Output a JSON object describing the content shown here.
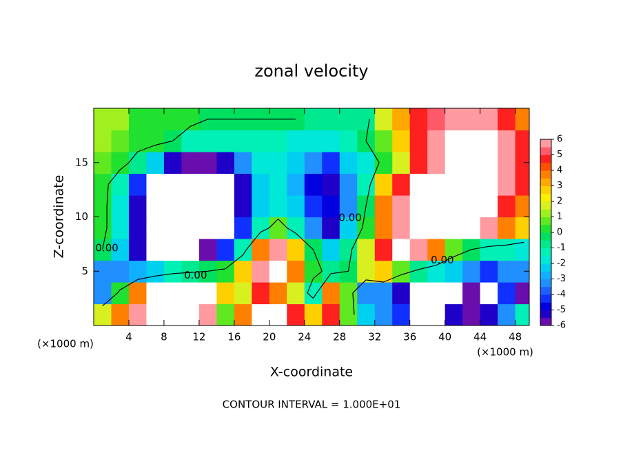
{
  "chart_data": {
    "type": "contour",
    "title": "zonal velocity",
    "x_label": "X-coordinate",
    "y_label": "Z-coordinate",
    "x_unit_label": "(×1000 m)",
    "x_unit_label_right": "(×1000 m)",
    "footer": "CONTOUR INTERVAL = 1.000E+01",
    "xlim": [
      0,
      49.6
    ],
    "ylim": [
      0,
      20
    ],
    "xticks": [
      4,
      8,
      12,
      16,
      20,
      24,
      28,
      32,
      36,
      40,
      44,
      48
    ],
    "yticks": [
      5,
      10,
      15
    ],
    "x": [
      1,
      3,
      5,
      7,
      9,
      11,
      13,
      15,
      17,
      19,
      21,
      23,
      25,
      27,
      29,
      31,
      33,
      35,
      37,
      39,
      41,
      43,
      45,
      47,
      49
    ],
    "y": [
      1,
      3,
      5,
      7,
      9,
      11,
      13,
      15,
      17,
      19
    ],
    "z": [
      [
        2,
        4,
        6,
        7,
        8,
        8,
        6,
        1,
        4,
        7,
        7,
        5,
        3,
        5,
        1,
        -2,
        -3,
        -4,
        -7,
        -7,
        -5,
        -6,
        -5,
        -3,
        -1
      ],
      [
        -3,
        0.5,
        4,
        7,
        8,
        8,
        7,
        3,
        2,
        5,
        4,
        2,
        -1,
        4,
        1,
        -3,
        -3,
        -5,
        -7,
        -7,
        -8,
        -6,
        -7,
        -4,
        -6
      ],
      [
        -3,
        -3,
        -2.5,
        -2,
        -1,
        -0.5,
        0,
        0.5,
        3,
        6,
        7,
        4,
        0.5,
        -0.5,
        0,
        2,
        3,
        1,
        -0.5,
        -1.5,
        -2,
        -3,
        -4,
        -3,
        -3
      ],
      [
        0,
        -2,
        -5,
        -7,
        -7,
        -7,
        -6,
        -4,
        -1,
        4,
        6,
        3,
        0,
        -2,
        -0.5,
        2,
        5,
        7,
        6,
        4,
        1,
        0,
        -1,
        -1,
        -1.5
      ],
      [
        0.5,
        -1.5,
        -5,
        -8,
        -9,
        -8,
        -7,
        -6.5,
        -4,
        -1,
        1,
        -1,
        -3,
        -5,
        -2,
        0.5,
        4,
        6,
        7,
        7,
        7,
        7,
        6,
        4,
        3
      ],
      [
        0.5,
        -1.5,
        -5,
        -8,
        -9,
        -9,
        -8,
        -7,
        -5,
        -2,
        -1.5,
        -2,
        -4,
        -4.5,
        -3,
        0,
        4,
        6,
        7,
        8,
        9,
        8,
        7,
        5,
        4
      ],
      [
        0.5,
        -1,
        -4,
        -7,
        -8,
        -8,
        -8,
        -7,
        -5,
        -2,
        -1.5,
        -2.5,
        -4.5,
        -5,
        -3,
        -1,
        3,
        5,
        7,
        8,
        8,
        8,
        7,
        6,
        5
      ],
      [
        1,
        0.5,
        -0.5,
        -2,
        -5,
        -6,
        -6,
        -5,
        -3,
        -1.5,
        -1.5,
        -2,
        -3,
        -4,
        -2,
        -1.5,
        0.5,
        2,
        5,
        6,
        7,
        7,
        7,
        6,
        5
      ],
      [
        1.5,
        1,
        0.5,
        0.5,
        0,
        -1,
        -1,
        -1,
        -1,
        -1,
        -1,
        -1.5,
        -1.5,
        -1.5,
        -1,
        0,
        1,
        3,
        5,
        6,
        7,
        7,
        7,
        6,
        5
      ],
      [
        1.5,
        1.5,
        0.5,
        0.5,
        0.5,
        0.5,
        0,
        0,
        0,
        0,
        0,
        0,
        -0.5,
        -0.5,
        -0.5,
        -0.5,
        2,
        3.5,
        5,
        5.5,
        6,
        6,
        6,
        5,
        4
      ]
    ],
    "color_levels": [
      -6,
      -5.5,
      -5,
      -4.5,
      -4,
      -3.5,
      -3,
      -2.5,
      -2,
      -1.5,
      -1,
      -0.5,
      0,
      0.5,
      1,
      1.5,
      2,
      2.5,
      3,
      3.5,
      4,
      4.5,
      5,
      5.5,
      6
    ],
    "colors": [
      "#6a0dad",
      "#1e00c8",
      "#0000e0",
      "#1030ff",
      "#1e60ff",
      "#2090ff",
      "#10b0ff",
      "#00d0f0",
      "#00e8d8",
      "#00f0b8",
      "#00e890",
      "#00e060",
      "#20e030",
      "#60e820",
      "#a0f020",
      "#d8f020",
      "#f8f000",
      "#ffd000",
      "#ffa800",
      "#ff8000",
      "#ff5000",
      "#ff2020",
      "#ff5a6a",
      "#ff9aa0"
    ],
    "colorbar_ticks": [
      6,
      5,
      4,
      3,
      2,
      1,
      0,
      -1,
      -2,
      -3,
      -4,
      -5,
      -6
    ],
    "contour_levels": [
      0
    ],
    "contour_labels": [
      {
        "text": "0.00",
        "x": 1.5,
        "y": 7.1
      },
      {
        "text": "0.00",
        "x": 11.6,
        "y": 4.6
      },
      {
        "text": "0.00",
        "x": 29.2,
        "y": 9.9
      },
      {
        "text": "0.00",
        "x": 39.7,
        "y": 6.0
      }
    ]
  }
}
